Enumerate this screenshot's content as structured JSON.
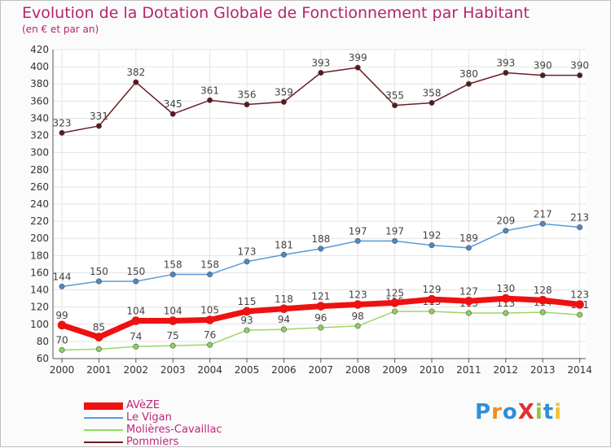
{
  "title": "Evolution de la Dotation Globale de Fonctionnement par Habitant",
  "subtitle": "(en € et par an)",
  "logo": "ProXiti",
  "chart_data": {
    "type": "line",
    "x": [
      "2000",
      "2001",
      "2002",
      "2003",
      "2004",
      "2005",
      "2006",
      "2007",
      "2008",
      "2009",
      "2010",
      "2011",
      "2012",
      "2013",
      "2014"
    ],
    "ylim": [
      60,
      420
    ],
    "yticks": [
      60,
      80,
      100,
      120,
      140,
      160,
      180,
      200,
      220,
      240,
      260,
      280,
      300,
      320,
      340,
      360,
      380,
      400,
      420
    ],
    "grid": true,
    "legend_position": "bottom-left",
    "series": [
      {
        "name": "Pommiers",
        "color": "#6b1e26",
        "marker": "#5c1620",
        "width": 1.5,
        "values": [
          323,
          331,
          382,
          345,
          361,
          356,
          359,
          393,
          399,
          355,
          358,
          380,
          393,
          390,
          390
        ]
      },
      {
        "name": "Le Vigan",
        "color": "#5b9bd5",
        "marker": "#4a89c8",
        "width": 1.5,
        "values": [
          144,
          150,
          150,
          158,
          158,
          173,
          181,
          188,
          197,
          197,
          192,
          189,
          209,
          217,
          213
        ]
      },
      {
        "name": "Molières-Cavaillac",
        "color": "#9bd66a",
        "marker": "#8fd05a",
        "width": 1.5,
        "values": [
          70,
          71,
          74,
          75,
          76,
          93,
          94,
          96,
          98,
          115,
          115,
          113,
          113,
          114,
          111
        ],
        "labels": [
          "70",
          "",
          "74",
          "75",
          "76",
          "93",
          "94",
          "96",
          "98",
          "115",
          "115",
          "113",
          "113",
          "114",
          "111"
        ]
      },
      {
        "name": "AVèZE",
        "color": "#ee1111",
        "marker": "#ee1111",
        "width": 7,
        "values": [
          99,
          85,
          104,
          104,
          105,
          115,
          118,
          121,
          123,
          125,
          129,
          127,
          130,
          128,
          123
        ]
      }
    ]
  }
}
